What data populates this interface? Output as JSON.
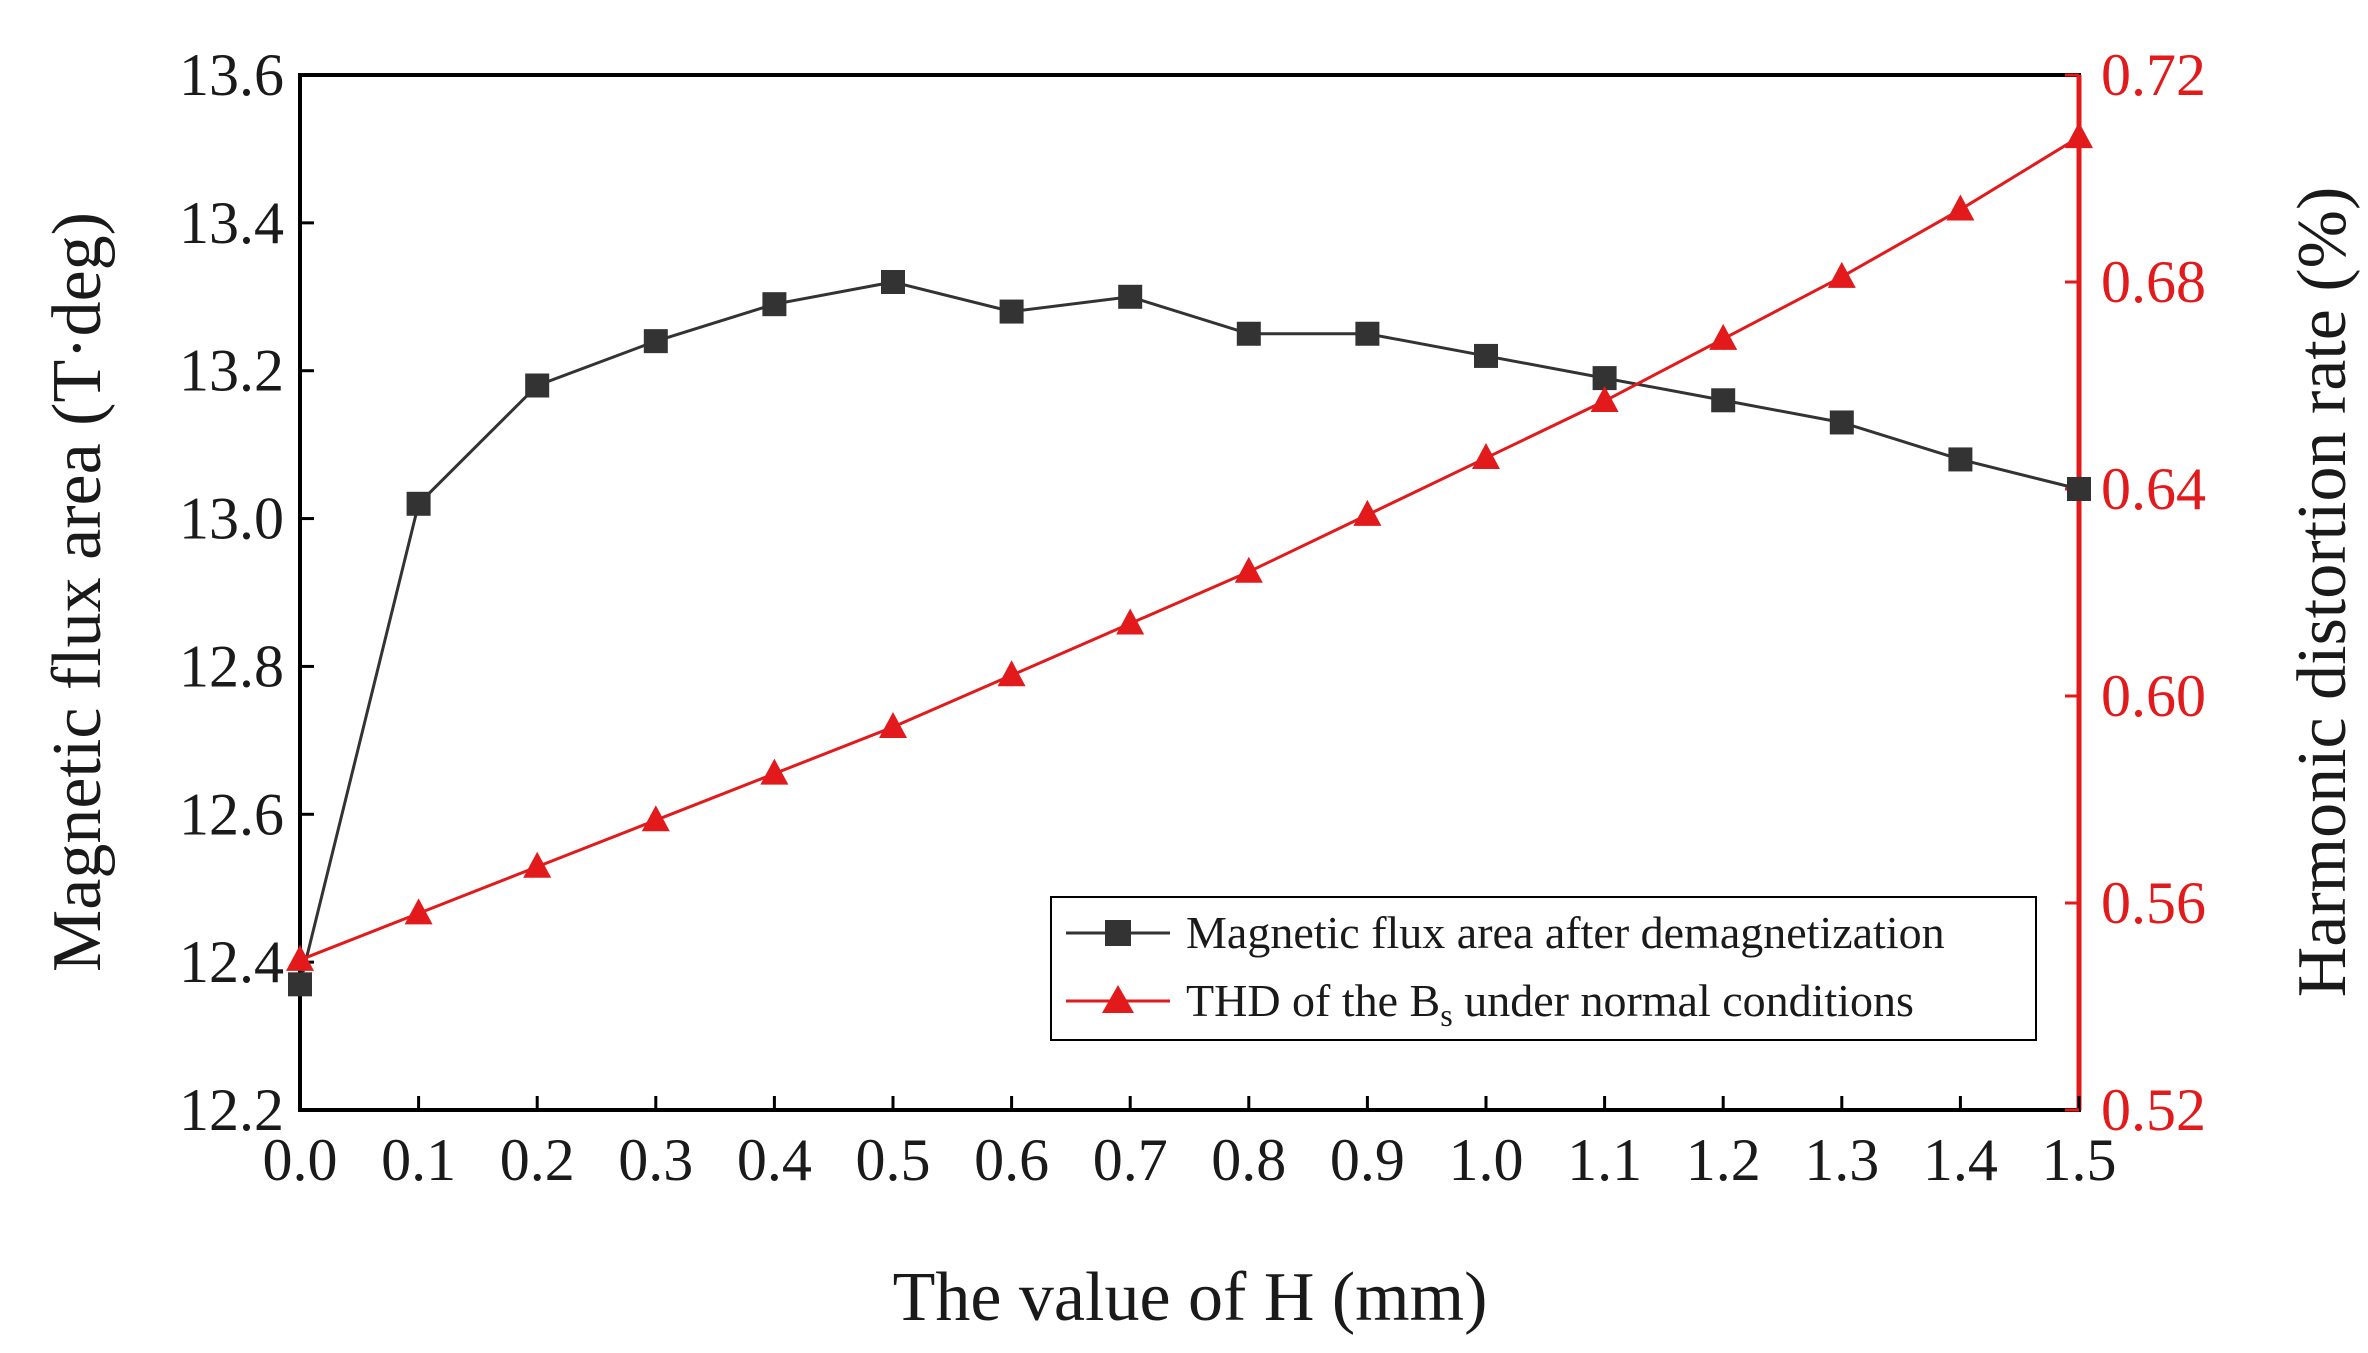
{
  "chart_data": {
    "type": "line",
    "x": [
      0.0,
      0.1,
      0.2,
      0.3,
      0.4,
      0.5,
      0.6,
      0.7,
      0.8,
      0.9,
      1.0,
      1.1,
      1.2,
      1.3,
      1.4,
      1.5
    ],
    "xlim": [
      0.0,
      1.5
    ],
    "xticks": [
      "0.0",
      "0.1",
      "0.2",
      "0.3",
      "0.4",
      "0.5",
      "0.6",
      "0.7",
      "0.8",
      "0.9",
      "1.0",
      "1.1",
      "1.2",
      "1.3",
      "1.4",
      "1.5"
    ],
    "xlabel": "The value of H (mm)",
    "ylabel": "Magnetic flux area (T·deg)",
    "ylim": [
      12.2,
      13.6
    ],
    "yticks": [
      "12.2",
      "12.4",
      "12.6",
      "12.8",
      "13.0",
      "13.2",
      "13.4",
      "13.6"
    ],
    "y2label": "Harmonic distortion rate (%)",
    "y2lim": [
      0.52,
      0.72
    ],
    "y2ticks": [
      "0.52",
      "0.56",
      "0.60",
      "0.64",
      "0.68",
      "0.72"
    ],
    "legend_position": "bottom-right",
    "series": [
      {
        "name": "Magnetic flux area after demagnetization",
        "axis": "left",
        "marker": "square",
        "color": "#333333",
        "values": [
          12.37,
          13.02,
          13.18,
          13.24,
          13.29,
          13.32,
          13.28,
          13.3,
          13.25,
          13.25,
          13.22,
          13.19,
          13.16,
          13.13,
          13.08,
          13.04
        ]
      },
      {
        "name": "THD of the B",
        "name_subscript": "s",
        "name_suffix": " under normal conditions",
        "axis": "right",
        "marker": "triangle",
        "color": "#e31a1c",
        "values": [
          0.549,
          0.558,
          0.567,
          0.576,
          0.585,
          0.594,
          0.604,
          0.614,
          0.624,
          0.635,
          0.646,
          0.657,
          0.669,
          0.681,
          0.694,
          0.708
        ]
      }
    ]
  }
}
